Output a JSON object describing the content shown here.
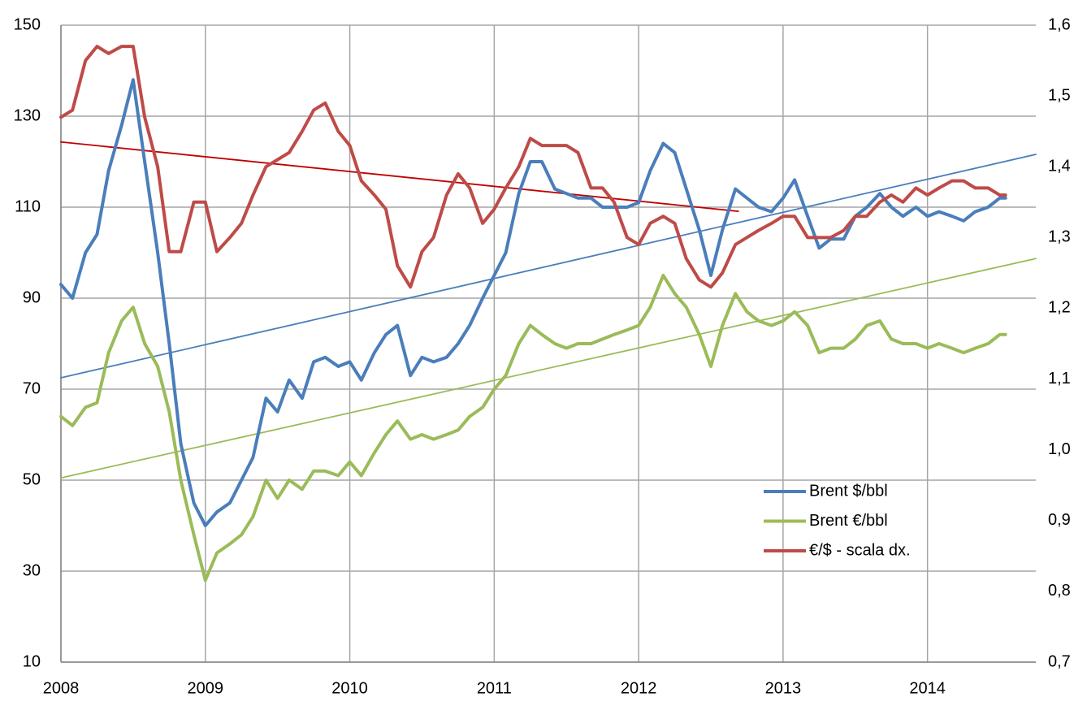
{
  "chart_data": {
    "type": "line",
    "x": [
      2008,
      2008.08,
      2008.17,
      2008.25,
      2008.33,
      2008.42,
      2008.5,
      2008.58,
      2008.67,
      2008.75,
      2008.83,
      2008.92,
      2009,
      2009.08,
      2009.17,
      2009.25,
      2009.33,
      2009.42,
      2009.5,
      2009.58,
      2009.67,
      2009.75,
      2009.83,
      2009.92,
      2010,
      2010.08,
      2010.17,
      2010.25,
      2010.33,
      2010.42,
      2010.5,
      2010.58,
      2010.67,
      2010.75,
      2010.83,
      2010.92,
      2011,
      2011.08,
      2011.17,
      2011.25,
      2011.33,
      2011.42,
      2011.5,
      2011.58,
      2011.67,
      2011.75,
      2011.83,
      2011.92,
      2012,
      2012.08,
      2012.17,
      2012.25,
      2012.33,
      2012.42,
      2012.5,
      2012.58,
      2012.67,
      2012.75,
      2012.83,
      2012.92,
      2013,
      2013.08,
      2013.17,
      2013.25,
      2013.33,
      2013.42,
      2013.5,
      2013.58,
      2013.67,
      2013.75,
      2013.83,
      2013.92,
      2014,
      2014.08,
      2014.17,
      2014.25,
      2014.33,
      2014.42,
      2014.5,
      2014.54
    ],
    "series": [
      {
        "name": "Brent $/bbl",
        "color": "#4a7ebb",
        "values": [
          93,
          90,
          100,
          104,
          118,
          128,
          138,
          120,
          100,
          80,
          58,
          45,
          40,
          43,
          45,
          50,
          55,
          68,
          65,
          72,
          68,
          76,
          77,
          75,
          76,
          72,
          78,
          82,
          84,
          73,
          77,
          76,
          77,
          80,
          84,
          90,
          95,
          100,
          113,
          120,
          120,
          114,
          113,
          112,
          112,
          110,
          110,
          110,
          111,
          118,
          124,
          122,
          114,
          105,
          95,
          105,
          114,
          112,
          110,
          109,
          112,
          116,
          108,
          101,
          103,
          103,
          108,
          110,
          113,
          110,
          108,
          110,
          108,
          109,
          108,
          107,
          109,
          110,
          112,
          112
        ]
      },
      {
        "name": "Brent €/bbl",
        "color": "#9bbb59",
        "values": [
          64,
          62,
          66,
          67,
          78,
          85,
          88,
          80,
          75,
          65,
          50,
          38,
          28,
          34,
          36,
          38,
          42,
          50,
          46,
          50,
          48,
          52,
          52,
          51,
          54,
          51,
          56,
          60,
          63,
          59,
          60,
          59,
          60,
          61,
          64,
          66,
          70,
          73,
          80,
          84,
          82,
          80,
          79,
          80,
          80,
          81,
          82,
          83,
          84,
          88,
          95,
          91,
          88,
          82,
          75,
          84,
          91,
          87,
          85,
          84,
          85,
          87,
          84,
          78,
          79,
          79,
          81,
          84,
          85,
          81,
          80,
          80,
          79,
          80,
          79,
          78,
          79,
          80,
          82,
          82
        ]
      },
      {
        "name": "€/$ - scala dx.",
        "color": "#be4b48",
        "axis": "y2",
        "values": [
          1.47,
          1.48,
          1.55,
          1.57,
          1.56,
          1.57,
          1.57,
          1.47,
          1.4,
          1.28,
          1.28,
          1.35,
          1.35,
          1.28,
          1.3,
          1.32,
          1.36,
          1.4,
          1.41,
          1.42,
          1.45,
          1.48,
          1.49,
          1.45,
          1.43,
          1.38,
          1.36,
          1.34,
          1.26,
          1.23,
          1.28,
          1.3,
          1.36,
          1.39,
          1.37,
          1.32,
          1.34,
          1.37,
          1.4,
          1.44,
          1.43,
          1.43,
          1.43,
          1.42,
          1.37,
          1.37,
          1.35,
          1.3,
          1.29,
          1.32,
          1.33,
          1.32,
          1.27,
          1.24,
          1.23,
          1.25,
          1.29,
          1.3,
          1.31,
          1.32,
          1.33,
          1.33,
          1.3,
          1.3,
          1.3,
          1.31,
          1.33,
          1.33,
          1.35,
          1.36,
          1.35,
          1.37,
          1.36,
          1.37,
          1.38,
          1.38,
          1.37,
          1.37,
          1.36,
          1.36
        ]
      }
    ],
    "trendlines": [
      {
        "color": "#4a7ebb",
        "x": [
          2008,
          2014.75
        ],
        "values": [
          72.5,
          121.6
        ]
      },
      {
        "color": "#9bbb59",
        "x": [
          2008,
          2014.75
        ],
        "values": [
          50.5,
          98.7
        ]
      },
      {
        "color": "#c00000",
        "axis": "y2",
        "x": [
          2008,
          2012.69
        ],
        "values": [
          1.435,
          1.337
        ]
      }
    ],
    "xlim": [
      2008,
      2014.75
    ],
    "xticks": [
      2008,
      2009,
      2010,
      2011,
      2012,
      2013,
      2014
    ],
    "ylim": [
      10,
      150
    ],
    "yticks": [
      10,
      30,
      50,
      70,
      90,
      110,
      130,
      150
    ],
    "y2lim": [
      0.7,
      1.6
    ],
    "y2ticks": [
      {
        "value": 0.7,
        "label": "0,7"
      },
      {
        "value": 0.8,
        "label": "0,8"
      },
      {
        "value": 0.9,
        "label": "0,9"
      },
      {
        "value": 1.0,
        "label": "1,0"
      },
      {
        "value": 1.1,
        "label": "1,1"
      },
      {
        "value": 1.2,
        "label": "1,2"
      },
      {
        "value": 1.3,
        "label": "1,3"
      },
      {
        "value": 1.4,
        "label": "1,4"
      },
      {
        "value": 1.5,
        "label": "1,5"
      },
      {
        "value": 1.6,
        "label": "1,6"
      }
    ],
    "grid": true,
    "legend": "lower right"
  }
}
